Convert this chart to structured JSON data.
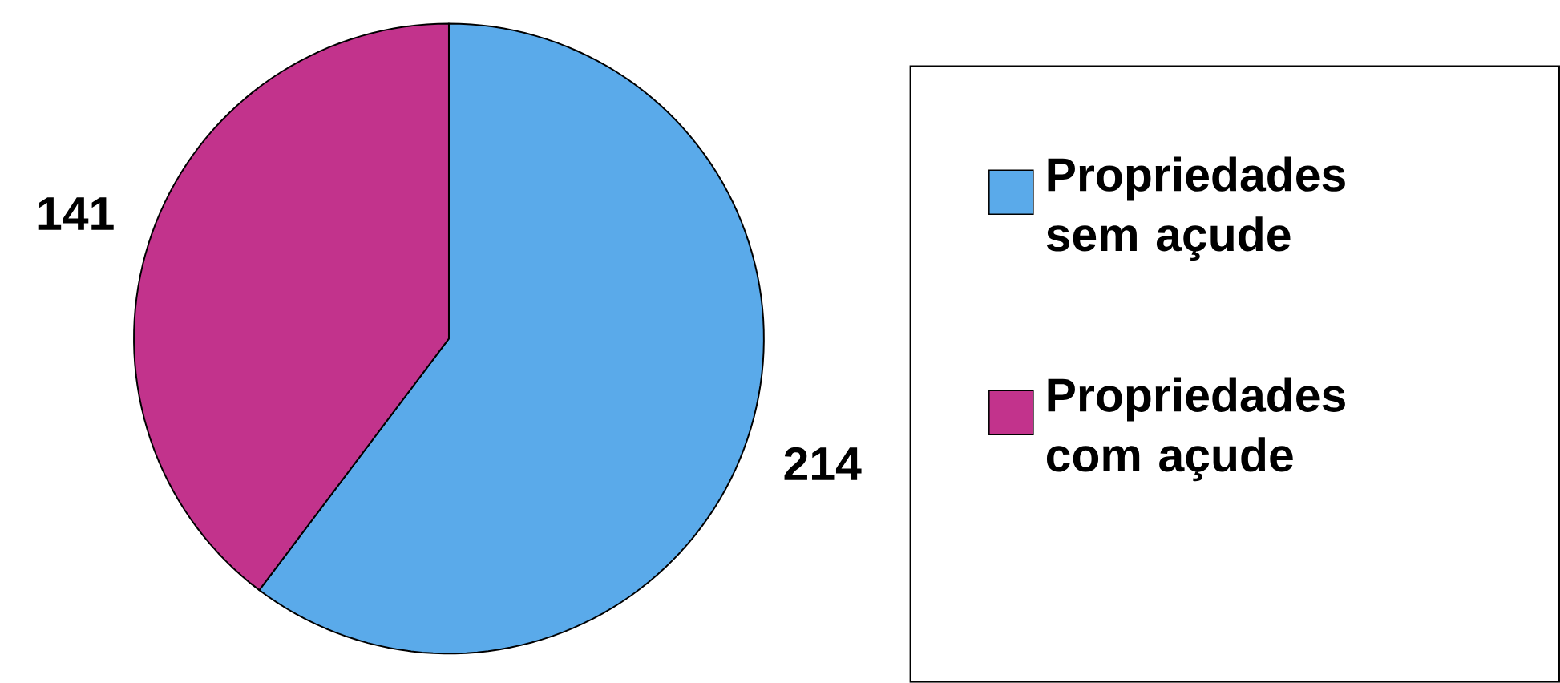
{
  "chart_data": {
    "type": "pie",
    "categories": [
      "Propriedades sem açude",
      "Propriedades com açude"
    ],
    "values": [
      214,
      141
    ],
    "colors": [
      "#5aaaea",
      "#c2338c"
    ],
    "data_labels": true,
    "legend": "right"
  }
}
